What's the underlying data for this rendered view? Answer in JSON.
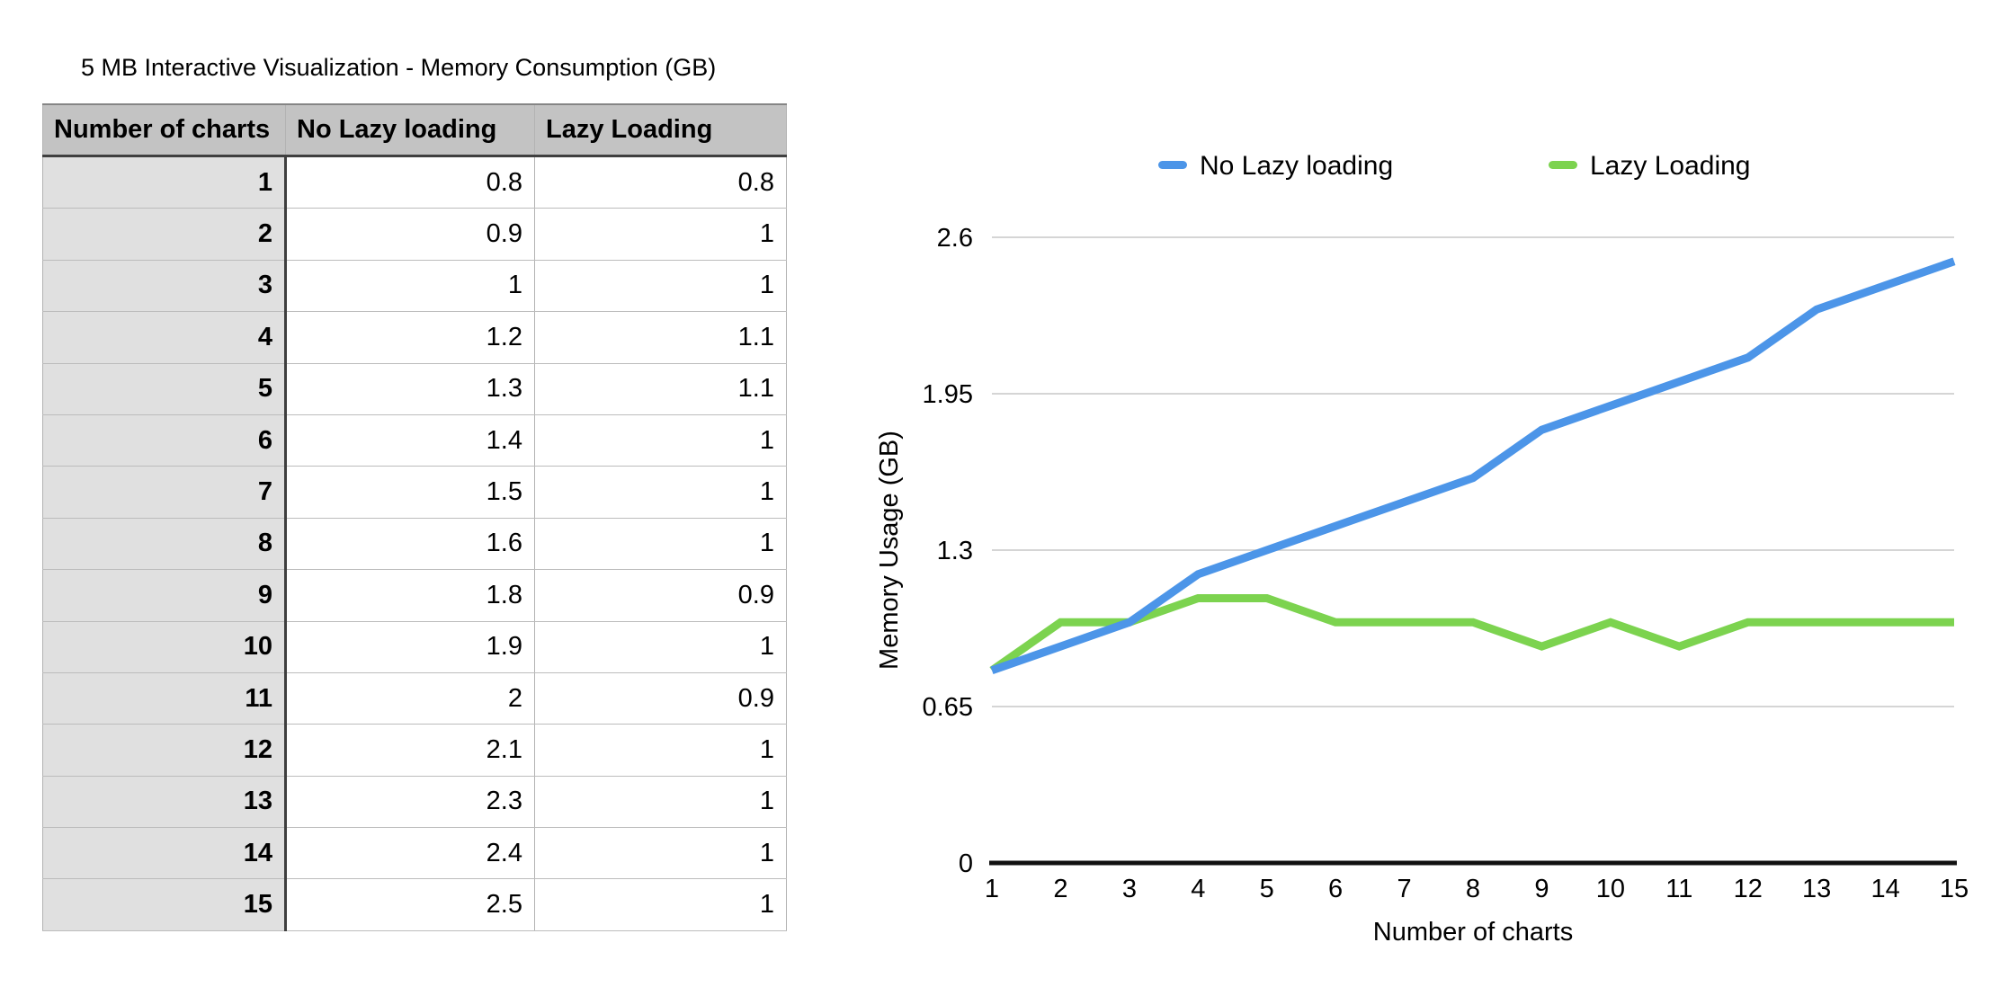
{
  "page": {
    "background": "#ffffff"
  },
  "table": {
    "title": "5 MB Interactive Visualization - Memory Consumption (GB)",
    "columns": [
      "Number of charts",
      "No Lazy loading",
      "Lazy Loading"
    ],
    "rows": [
      [
        "1",
        "0.8",
        "0.8"
      ],
      [
        "2",
        "0.9",
        "1"
      ],
      [
        "3",
        "1",
        "1"
      ],
      [
        "4",
        "1.2",
        "1.1"
      ],
      [
        "5",
        "1.3",
        "1.1"
      ],
      [
        "6",
        "1.4",
        "1"
      ],
      [
        "7",
        "1.5",
        "1"
      ],
      [
        "8",
        "1.6",
        "1"
      ],
      [
        "9",
        "1.8",
        "0.9"
      ],
      [
        "10",
        "1.9",
        "1"
      ],
      [
        "11",
        "2",
        "0.9"
      ],
      [
        "12",
        "2.1",
        "1"
      ],
      [
        "13",
        "2.3",
        "1"
      ],
      [
        "14",
        "2.4",
        "1"
      ],
      [
        "15",
        "2.5",
        "1"
      ]
    ]
  },
  "chart_data": {
    "type": "line",
    "x": [
      1,
      2,
      3,
      4,
      5,
      6,
      7,
      8,
      9,
      10,
      11,
      12,
      13,
      14,
      15
    ],
    "series": [
      {
        "name": "No Lazy loading",
        "color": "#4C95E8",
        "values": [
          0.8,
          0.9,
          1,
          1.2,
          1.3,
          1.4,
          1.5,
          1.6,
          1.8,
          1.9,
          2,
          2.1,
          2.3,
          2.4,
          2.5
        ]
      },
      {
        "name": "Lazy Loading",
        "color": "#7CD34F",
        "values": [
          0.8,
          1,
          1,
          1.1,
          1.1,
          1,
          1,
          1,
          0.9,
          1,
          0.9,
          1,
          1,
          1,
          1
        ]
      }
    ],
    "xlabel": "Number of charts",
    "ylabel": "Memory Usage (GB)",
    "ylim": [
      0,
      2.6
    ],
    "yticks": [
      0,
      0.65,
      1.3,
      1.95,
      2.6
    ],
    "ytick_labels": [
      "0",
      "0.65",
      "1.3",
      "1.95",
      "2.6"
    ],
    "xtick_labels": [
      "1",
      "2",
      "3",
      "4",
      "5",
      "6",
      "7",
      "8",
      "9",
      "10",
      "11",
      "12",
      "13",
      "14",
      "15"
    ],
    "legend": [
      "No Lazy loading",
      "Lazy Loading"
    ],
    "legend_position": "top",
    "grid": "horizontal"
  }
}
